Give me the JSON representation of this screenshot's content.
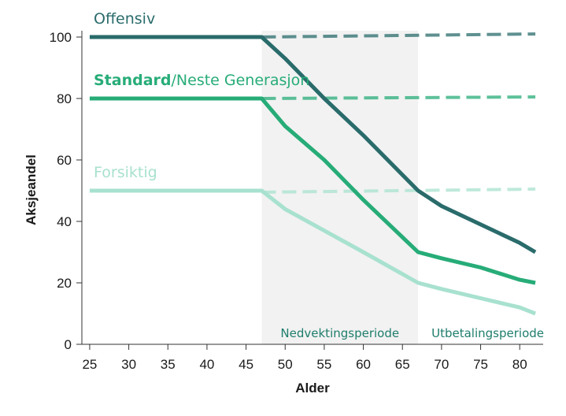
{
  "chart_data": {
    "type": "line",
    "xlabel": "Alder",
    "ylabel": "Aksjeandel",
    "xlim": [
      24,
      83
    ],
    "ylim": [
      0,
      100
    ],
    "xticks": [
      25,
      30,
      35,
      40,
      45,
      50,
      55,
      60,
      65,
      70,
      75,
      80
    ],
    "yticks": [
      0,
      20,
      40,
      60,
      80,
      100
    ],
    "grid": false,
    "legend": "inline labels",
    "shaded_region": {
      "x": [
        47,
        67
      ],
      "color": "#f2f2f2"
    },
    "period_labels": [
      {
        "text": "Nedvektingsperiode",
        "x_start": 47,
        "x_end": 67
      },
      {
        "text": "Utbetalingsperiode",
        "x_start": 67,
        "x_end": 82
      }
    ],
    "series": [
      {
        "name_bold": "",
        "name_rest": "Offensiv",
        "color": "#2a6b6b",
        "x": [
          25,
          47,
          50,
          55,
          60,
          67,
          70,
          75,
          80,
          82
        ],
        "y": [
          100,
          100,
          93,
          80,
          68,
          50,
          45,
          39,
          33,
          30
        ],
        "dashed": {
          "x": [
            47,
            82
          ],
          "y": [
            100,
            101
          ]
        }
      },
      {
        "name_bold": "Standard",
        "name_rest": "/Neste Generasjon",
        "color": "#27ac78",
        "x": [
          25,
          47,
          50,
          55,
          60,
          67,
          70,
          75,
          80,
          82
        ],
        "y": [
          80,
          80,
          71,
          60,
          47,
          30,
          28,
          25,
          21,
          20
        ],
        "dashed": {
          "x": [
            47,
            82
          ],
          "y": [
            80,
            80.5
          ]
        }
      },
      {
        "name_bold": "",
        "name_rest": "Forsiktig",
        "color": "#a8e1cf",
        "x": [
          25,
          47,
          50,
          55,
          60,
          67,
          70,
          75,
          80,
          82
        ],
        "y": [
          50,
          50,
          44,
          37,
          30,
          20,
          18,
          15,
          12,
          10
        ],
        "dashed": {
          "x": [
            47,
            82
          ],
          "y": [
            49.5,
            50.5
          ]
        }
      }
    ]
  }
}
